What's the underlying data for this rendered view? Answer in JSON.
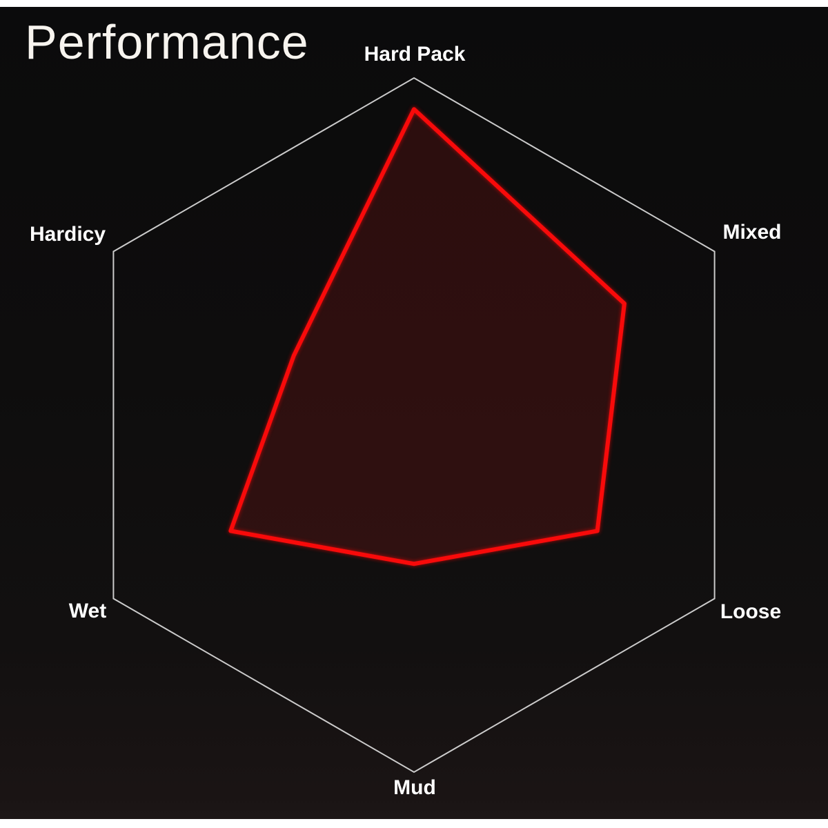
{
  "page": {
    "title": "Performance",
    "frame_color": "#ffffff",
    "background_top_color": "#0b0b0c",
    "background_bottom_color": "#1c1616",
    "title_color": "#f7f4ef",
    "label_color": "#ffffff"
  },
  "chart_data": {
    "type": "radar",
    "title": "Performance",
    "categories": [
      "Hard Pack",
      "Mixed",
      "Loose",
      "Mud",
      "Wet",
      "Hardicy"
    ],
    "series": [
      {
        "name": "Performance",
        "values": [
          9.1,
          7.0,
          6.1,
          4.0,
          6.1,
          4.0
        ]
      }
    ],
    "max": 10,
    "grid_shape": "hexagon",
    "grid_rings": 1,
    "grid_color": "#d6d6d6",
    "axes_start_angle_deg": -90,
    "direction": "clockwise",
    "stroke_color": "#f80a0a",
    "stroke_width": 6,
    "fill_color": "rgba(255,30,30,0.135)",
    "legend": "none",
    "tick_labels": "none"
  }
}
